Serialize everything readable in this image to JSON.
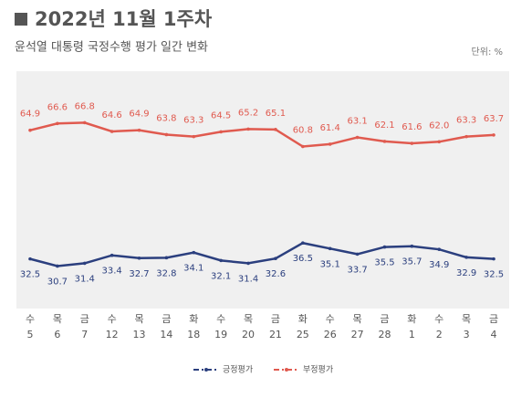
{
  "chart_data": {
    "type": "line",
    "title": "2022년 11월 1주차",
    "subtitle": "윤석열 대통령 국정수행 평가 일간 변화",
    "unit": "단위: %",
    "weekdays": [
      "수",
      "목",
      "금",
      "수",
      "목",
      "금",
      "화",
      "수",
      "목",
      "금",
      "화",
      "수",
      "목",
      "금",
      "화",
      "수",
      "목",
      "금"
    ],
    "categories": [
      "5",
      "6",
      "7",
      "12",
      "13",
      "14",
      "18",
      "19",
      "20",
      "21",
      "25",
      "26",
      "27",
      "28",
      "1",
      "2",
      "3",
      "4"
    ],
    "series": [
      {
        "name": "긍정평가",
        "color": "#2b3f7e",
        "values": [
          32.5,
          30.7,
          31.4,
          33.4,
          32.7,
          32.8,
          34.1,
          32.1,
          31.4,
          32.6,
          36.5,
          35.1,
          33.7,
          35.5,
          35.7,
          34.9,
          32.9,
          32.5
        ],
        "value_labels": [
          "32.5",
          "30.7",
          "31.4",
          "33.4",
          "32.7",
          "32.8",
          "34.1",
          "32.1",
          "31.4",
          "32.6",
          "36.5",
          "35.1",
          "33.7",
          "35.5",
          "35.7",
          "34.9",
          "32.9",
          "32.5"
        ]
      },
      {
        "name": "부정평가",
        "color": "#e05a4f",
        "values": [
          64.9,
          66.6,
          66.8,
          64.6,
          64.9,
          63.8,
          63.3,
          64.5,
          65.2,
          65.1,
          60.8,
          61.4,
          63.1,
          62.1,
          61.6,
          62.0,
          63.3,
          63.7
        ],
        "value_labels": [
          "64.9",
          "66.6",
          "66.8",
          "64.6",
          "64.9",
          "63.8",
          "63.3",
          "64.5",
          "65.2",
          "65.1",
          "60.8",
          "61.4",
          "63.1",
          "62.1",
          "61.6",
          "62.0",
          "63.3",
          "63.7"
        ]
      }
    ]
  }
}
